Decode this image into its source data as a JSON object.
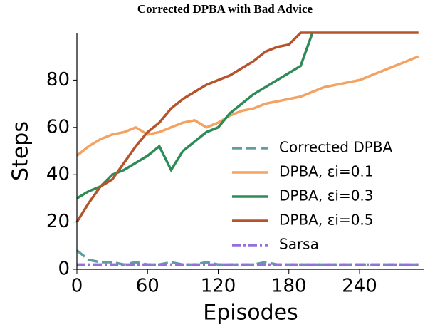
{
  "chart_data": {
    "type": "line",
    "title": "Corrected DPBA with Bad Advice",
    "x_label": "Episodes",
    "y_label": "Steps",
    "x": [
      0,
      10,
      20,
      30,
      40,
      50,
      60,
      70,
      80,
      90,
      100,
      110,
      120,
      130,
      140,
      150,
      160,
      170,
      180,
      190,
      200,
      210,
      220,
      230,
      240,
      250,
      260,
      270,
      280,
      290
    ],
    "series": [
      {
        "name": "Corrected DPBA",
        "color": "#5f9ea0",
        "dash": "dashed",
        "values": [
          8,
          4,
          3,
          3,
          2,
          3,
          2,
          2,
          3,
          2,
          2,
          3,
          2,
          2,
          2,
          2,
          3,
          2,
          2,
          2,
          2,
          2,
          2,
          2,
          2,
          2,
          2,
          2,
          2,
          2
        ]
      },
      {
        "name": "DPBA, εi=0.1",
        "color": "#f4a261",
        "dash": "solid",
        "values": [
          48,
          52,
          55,
          57,
          58,
          60,
          57,
          58,
          60,
          62,
          63,
          60,
          62,
          65,
          67,
          68,
          70,
          71,
          72,
          73,
          75,
          77,
          78,
          79,
          80,
          82,
          84,
          86,
          88,
          90
        ]
      },
      {
        "name": "DPBA, εi=0.3",
        "color": "#2e8b57",
        "dash": "solid",
        "values": [
          30,
          33,
          35,
          40,
          42,
          45,
          48,
          52,
          42,
          50,
          54,
          58,
          60,
          66,
          70,
          74,
          77,
          80,
          83,
          86,
          100,
          null,
          null,
          null,
          null,
          null,
          null,
          null,
          null,
          null
        ]
      },
      {
        "name": "DPBA, εi=0.5",
        "color": "#b5532a",
        "dash": "solid",
        "values": [
          20,
          28,
          35,
          38,
          45,
          52,
          58,
          62,
          68,
          72,
          75,
          78,
          80,
          82,
          85,
          88,
          92,
          94,
          95,
          100,
          100,
          100,
          100,
          100,
          100,
          100,
          100,
          100,
          100,
          100
        ]
      },
      {
        "name": "Sarsa",
        "color": "#9370db",
        "dash": "dashdot",
        "values": [
          2,
          2,
          2,
          2,
          2,
          2,
          2,
          2,
          2,
          2,
          2,
          2,
          2,
          2,
          2,
          2,
          2,
          2,
          2,
          2,
          2,
          2,
          2,
          2,
          2,
          2,
          2,
          2,
          2,
          2
        ]
      }
    ],
    "xlim": [
      0,
      295
    ],
    "ylim": [
      0,
      100
    ],
    "xticks": [
      0,
      60,
      120,
      180,
      240
    ],
    "yticks": [
      0,
      20,
      40,
      60,
      80
    ],
    "legend": "right"
  }
}
